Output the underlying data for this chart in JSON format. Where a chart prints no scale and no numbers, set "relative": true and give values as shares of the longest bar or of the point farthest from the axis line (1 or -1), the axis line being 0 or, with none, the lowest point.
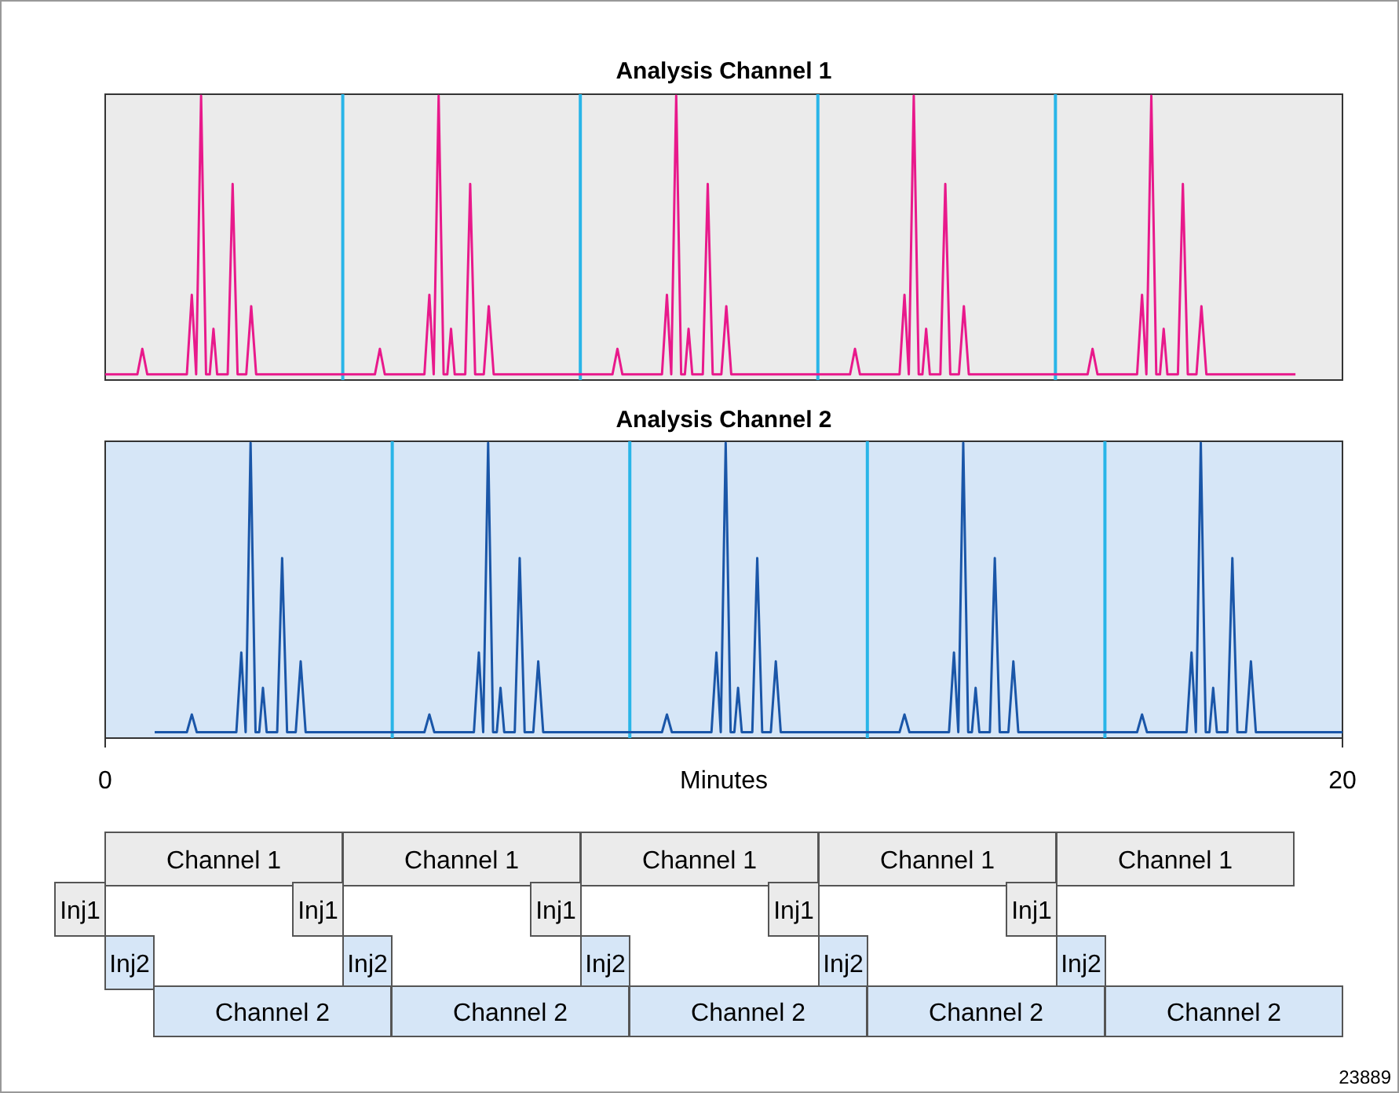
{
  "chart_data": [
    {
      "type": "line",
      "title": "Analysis Channel 1",
      "relative": true,
      "xlim": [
        0,
        20
      ],
      "tick_labels": false,
      "grid": false,
      "ref_lines": [
        {
          "axis": "x",
          "value": 3.84,
          "color": "#29b5e8"
        },
        {
          "axis": "x",
          "value": 7.68,
          "color": "#29b5e8"
        },
        {
          "axis": "x",
          "value": 11.52,
          "color": "#29b5e8"
        },
        {
          "axis": "x",
          "value": 15.36,
          "color": "#29b5e8"
        }
      ],
      "series": [
        {
          "color": "#e8198b",
          "x": [
            0,
            0.52,
            0.6,
            0.68,
            1.32,
            1.4,
            1.47,
            1.55,
            1.63,
            1.69,
            1.75,
            1.81,
            1.98,
            2.06,
            2.14,
            2.28,
            2.36,
            2.44,
            4.36,
            4.44,
            4.52,
            5.16,
            5.24,
            5.31,
            5.39,
            5.47,
            5.53,
            5.59,
            5.65,
            5.82,
            5.9,
            5.98,
            6.12,
            6.2,
            6.28,
            8.2,
            8.28,
            8.36,
            9,
            9.08,
            9.15,
            9.23,
            9.31,
            9.37,
            9.43,
            9.49,
            9.66,
            9.74,
            9.82,
            9.96,
            10.04,
            10.12,
            12.04,
            12.12,
            12.2,
            12.84,
            12.92,
            12.99,
            13.07,
            13.15,
            13.21,
            13.27,
            13.33,
            13.5,
            13.58,
            13.66,
            13.8,
            13.88,
            13.96,
            15.88,
            15.96,
            16.04,
            16.68,
            16.76,
            16.83,
            16.91,
            16.99,
            17.05,
            17.11,
            17.17,
            17.34,
            17.42,
            17.5,
            17.64,
            17.72,
            17.8,
            19.24
          ],
          "values": [
            0.02,
            0.02,
            0.11,
            0.02,
            0.02,
            0.3,
            0.02,
            1.0,
            0.02,
            0.02,
            0.18,
            0.02,
            0.02,
            0.69,
            0.02,
            0.02,
            0.26,
            0.02,
            0.02,
            0.11,
            0.02,
            0.02,
            0.3,
            0.02,
            1.0,
            0.02,
            0.02,
            0.18,
            0.02,
            0.02,
            0.69,
            0.02,
            0.02,
            0.26,
            0.02,
            0.02,
            0.11,
            0.02,
            0.02,
            0.3,
            0.02,
            1.0,
            0.02,
            0.02,
            0.18,
            0.02,
            0.02,
            0.69,
            0.02,
            0.02,
            0.26,
            0.02,
            0.02,
            0.11,
            0.02,
            0.02,
            0.3,
            0.02,
            1.0,
            0.02,
            0.02,
            0.18,
            0.02,
            0.02,
            0.69,
            0.02,
            0.02,
            0.26,
            0.02,
            0.02,
            0.11,
            0.02,
            0.02,
            0.3,
            0.02,
            1.0,
            0.02,
            0.02,
            0.18,
            0.02,
            0.02,
            0.69,
            0.02,
            0.02,
            0.26,
            0.02,
            0.02
          ]
        }
      ]
    },
    {
      "type": "line",
      "title": "Analysis Channel 2",
      "xlabel": "Minutes",
      "relative": true,
      "xlim": [
        0,
        20
      ],
      "xticks": [
        0,
        20
      ],
      "tick_labels": "x",
      "grid": false,
      "ref_lines": [
        {
          "axis": "x",
          "value": 4.64,
          "color": "#29b5e8"
        },
        {
          "axis": "x",
          "value": 8.48,
          "color": "#29b5e8"
        },
        {
          "axis": "x",
          "value": 12.32,
          "color": "#29b5e8"
        },
        {
          "axis": "x",
          "value": 16.16,
          "color": "#29b5e8"
        }
      ],
      "series": [
        {
          "color": "#1a56a8",
          "x": [
            0.8,
            1.32,
            1.4,
            1.48,
            2.12,
            2.2,
            2.27,
            2.35,
            2.43,
            2.49,
            2.55,
            2.61,
            2.78,
            2.86,
            2.94,
            3.08,
            3.16,
            3.24,
            5.16,
            5.24,
            5.32,
            5.96,
            6.04,
            6.11,
            6.19,
            6.27,
            6.33,
            6.39,
            6.45,
            6.62,
            6.7,
            6.78,
            6.92,
            7,
            7.08,
            9,
            9.08,
            9.16,
            9.8,
            9.88,
            9.95,
            10.03,
            10.11,
            10.17,
            10.23,
            10.29,
            10.46,
            10.54,
            10.62,
            10.76,
            10.84,
            10.92,
            12.84,
            12.92,
            13,
            13.64,
            13.72,
            13.79,
            13.87,
            13.95,
            14.01,
            14.07,
            14.13,
            14.3,
            14.38,
            14.46,
            14.6,
            14.68,
            14.76,
            16.68,
            16.76,
            16.84,
            17.48,
            17.56,
            17.63,
            17.71,
            17.79,
            17.85,
            17.91,
            17.97,
            18.14,
            18.22,
            18.3,
            18.44,
            18.52,
            18.6,
            20
          ],
          "values": [
            0.02,
            0.02,
            0.08,
            0.02,
            0.02,
            0.29,
            0.02,
            1.0,
            0.02,
            0.02,
            0.17,
            0.02,
            0.02,
            0.61,
            0.02,
            0.02,
            0.26,
            0.02,
            0.02,
            0.08,
            0.02,
            0.02,
            0.29,
            0.02,
            1.0,
            0.02,
            0.02,
            0.17,
            0.02,
            0.02,
            0.61,
            0.02,
            0.02,
            0.26,
            0.02,
            0.02,
            0.08,
            0.02,
            0.02,
            0.29,
            0.02,
            1.0,
            0.02,
            0.02,
            0.17,
            0.02,
            0.02,
            0.61,
            0.02,
            0.02,
            0.26,
            0.02,
            0.02,
            0.08,
            0.02,
            0.02,
            0.29,
            0.02,
            1.0,
            0.02,
            0.02,
            0.17,
            0.02,
            0.02,
            0.61,
            0.02,
            0.02,
            0.26,
            0.02,
            0.02,
            0.08,
            0.02,
            0.02,
            0.29,
            0.02,
            1.0,
            0.02,
            0.02,
            0.17,
            0.02,
            0.02,
            0.61,
            0.02,
            0.02,
            0.26,
            0.02,
            0.02
          ]
        }
      ]
    },
    {
      "type": "other",
      "annotations": [
        "Channel 1",
        "Channel 1",
        "Channel 1",
        "Channel 1",
        "Channel 1",
        "Inj1",
        "Inj1",
        "Inj1",
        "Inj1",
        "Inj1",
        "Inj2",
        "Inj2",
        "Inj2",
        "Inj2",
        "Inj2",
        "Channel 2",
        "Channel 2",
        "Channel 2",
        "Channel 2",
        "Channel 2",
        "23889"
      ]
    }
  ]
}
